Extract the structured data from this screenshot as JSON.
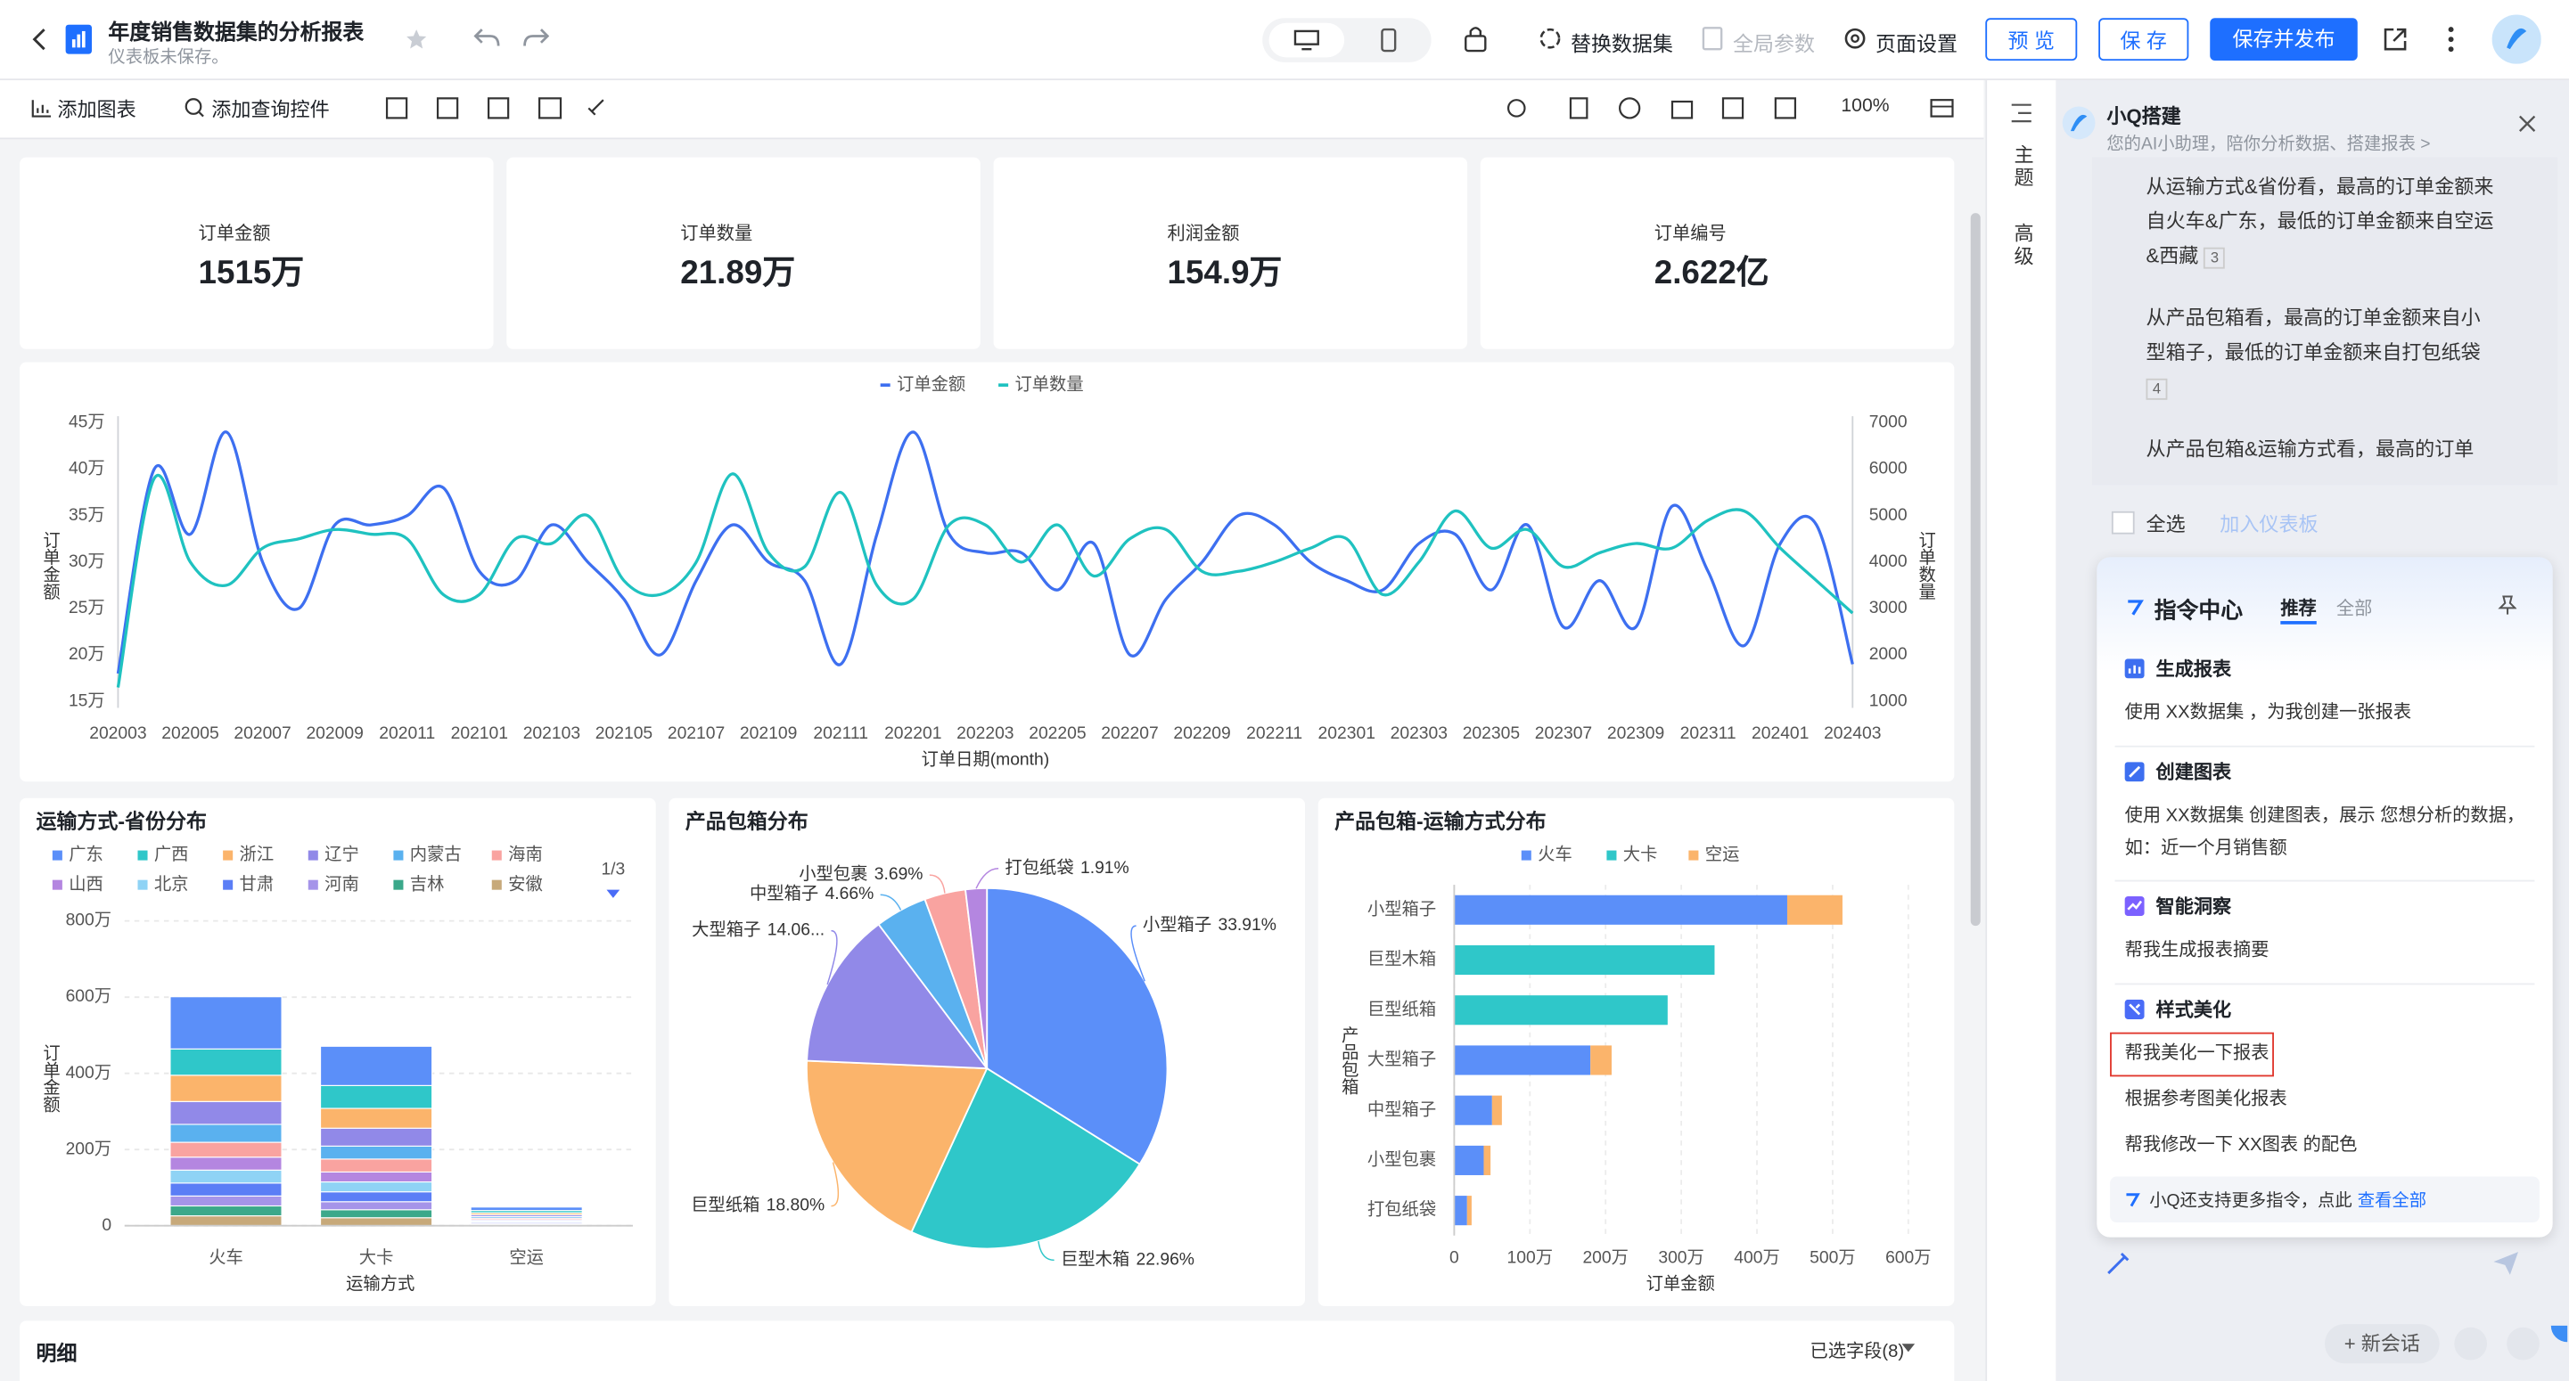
{
  "header": {
    "title": "年度销售数据集的分析报表",
    "subtitle": "仪表板未保存。",
    "actions": [
      "替换数据集",
      "全局参数",
      "页面设置"
    ],
    "buttons": [
      "预 览",
      "保 存",
      "保存并发布"
    ]
  },
  "toolbar": {
    "items": [
      "添加图表",
      "添加查询控件"
    ],
    "zoom": "100%"
  },
  "side_tabs": [
    "主题",
    "高级"
  ],
  "kpis": [
    {
      "label": "订单金额",
      "value": "1515万"
    },
    {
      "label": "订单数量",
      "value": "21.89万"
    },
    {
      "label": "利润金额",
      "value": "154.9万"
    },
    {
      "label": "订单编号",
      "value": "2.622亿"
    }
  ],
  "charts": [
    {
      "type": "line",
      "x_label": "订单日期(month)",
      "y_label": "订单金额",
      "y2_label": "订单数量",
      "categories": [
        "202003",
        null,
        "202005",
        null,
        "202007",
        null,
        "202009",
        null,
        "202011",
        null,
        "202101",
        null,
        "202103",
        null,
        "202105",
        null,
        "202107",
        null,
        "202109",
        null,
        "202111",
        null,
        "202201",
        null,
        "202203",
        null,
        "202205",
        null,
        "202207",
        null,
        "202209",
        null,
        "202211",
        null,
        "202301",
        null,
        "202303",
        null,
        "202305",
        null,
        "202307",
        null,
        "202309",
        null,
        "202311",
        null,
        "202401",
        null,
        "202403"
      ],
      "series": [
        {
          "name": "订单金额",
          "color": "#3d6ff0",
          "values": [
            18,
            40,
            33,
            44,
            30,
            25,
            34,
            34,
            35,
            38,
            29,
            28,
            34,
            30,
            26,
            20,
            28,
            34,
            30,
            28,
            19,
            33,
            44,
            33,
            31,
            31,
            27,
            32,
            20,
            26,
            30,
            35,
            34,
            30,
            28,
            27,
            32,
            33,
            27,
            34,
            23,
            28,
            23,
            36,
            29,
            21,
            32,
            34,
            19
          ]
        },
        {
          "name": "订单数量",
          "color": "#1fc2c0",
          "axis": "y2",
          "values": [
            1300,
            5800,
            4000,
            3500,
            4300,
            4500,
            4700,
            4600,
            4500,
            3300,
            3300,
            4500,
            4400,
            5000,
            3600,
            3300,
            4000,
            5900,
            4200,
            3900,
            5500,
            3500,
            3200,
            4800,
            4800,
            4000,
            4800,
            3700,
            4500,
            4700,
            3800,
            3800,
            4000,
            4300,
            4500,
            3300,
            4000,
            5100,
            4300,
            4700,
            3900,
            4200,
            4400,
            4300,
            4900,
            5100,
            4300,
            3600,
            2900
          ]
        }
      ],
      "ylim": [
        15,
        45
      ],
      "yticks": [
        {
          "value": 15,
          "label": "15万"
        },
        {
          "value": 20,
          "label": "20万"
        },
        {
          "value": 25,
          "label": "25万"
        },
        {
          "value": 30,
          "label": "30万"
        },
        {
          "value": 35,
          "label": "35万"
        },
        {
          "value": 40,
          "label": "40万"
        },
        {
          "value": 45,
          "label": "45万"
        }
      ],
      "y2lim": [
        1000,
        7000
      ],
      "y2ticks": [
        1000,
        2000,
        3000,
        4000,
        5000,
        6000,
        7000
      ],
      "grid": false
    },
    {
      "type": "stacked_bar",
      "title": "运输方式-省份分布",
      "x_label": "运输方式",
      "y_label": "订单金额",
      "legend_page": "1/3",
      "categories": [
        "火车",
        "大卡",
        "空运"
      ],
      "series": [
        {
          "name": "广东",
          "color": "#5b8ff9",
          "values": [
            137,
            103,
            9
          ]
        },
        {
          "name": "广西",
          "color": "#2fc7c9",
          "values": [
            69,
            60,
            6
          ]
        },
        {
          "name": "浙江",
          "color": "#fbb46b",
          "values": [
            69,
            52,
            5
          ]
        },
        {
          "name": "辽宁",
          "color": "#9189e8",
          "values": [
            60,
            47,
            5
          ]
        },
        {
          "name": "内蒙古",
          "color": "#5ab1ef",
          "values": [
            47,
            34,
            4
          ]
        },
        {
          "name": "海南",
          "color": "#f9a3a0",
          "values": [
            39,
            34,
            4
          ]
        },
        {
          "name": "山西",
          "color": "#b486e0",
          "values": [
            34,
            26,
            3
          ]
        },
        {
          "name": "北京",
          "color": "#8fd3f5",
          "values": [
            34,
            26,
            3
          ]
        },
        {
          "name": "甘肃",
          "color": "#5b7ef6",
          "values": [
            34,
            26,
            3
          ]
        },
        {
          "name": "河南",
          "color": "#a594e9",
          "values": [
            26,
            21,
            3
          ]
        },
        {
          "name": "吉林",
          "color": "#3ba88a",
          "values": [
            26,
            21,
            2
          ]
        },
        {
          "name": "安徽",
          "color": "#c7a97a",
          "values": [
            26,
            21,
            2
          ]
        }
      ],
      "ylim": [
        0,
        800
      ],
      "yticks": [
        0,
        {
          "value": 200,
          "label": "200万"
        },
        {
          "value": 400,
          "label": "400万"
        },
        {
          "value": 600,
          "label": "600万"
        },
        {
          "value": 800,
          "label": "800万"
        }
      ],
      "grid": true
    },
    {
      "type": "pie",
      "title": "产品包箱分布",
      "categories": [
        "小型箱子",
        "巨型木箱",
        "巨型纸箱",
        "大型箱子",
        "中型箱子",
        "小型包裹",
        "打包纸袋"
      ],
      "values": [
        33.91,
        22.96,
        18.8,
        14.06,
        4.66,
        3.69,
        1.91
      ],
      "value_labels": [
        "33.91%",
        "22.96%",
        "18.80%",
        "14.06...",
        "4.66%",
        "3.69%",
        "1.91%"
      ],
      "colors": [
        "#5b8ff9",
        "#2fc7c9",
        "#fbb46b",
        "#9189e8",
        "#5ab1ef",
        "#f9a3a0",
        "#b486e0"
      ]
    },
    {
      "type": "hbar",
      "title": "产品包箱-运输方式分布",
      "x_label": "订单金额",
      "y_label": "产品包箱",
      "categories": [
        "小型箱子",
        "巨型木箱",
        "巨型纸箱",
        "大型箱子",
        "中型箱子",
        "小型包裹",
        "打包纸袋"
      ],
      "series": [
        {
          "name": "火车",
          "color": "#5b8ff9",
          "values": [
            440,
            null,
            null,
            180,
            50,
            39,
            17
          ]
        },
        {
          "name": "大卡",
          "color": "#2fc7c9",
          "values": [
            null,
            344,
            282,
            null,
            null,
            null,
            null
          ]
        },
        {
          "name": "空运",
          "color": "#fbb46b",
          "values": [
            73,
            null,
            null,
            28,
            13,
            9,
            6
          ]
        }
      ],
      "xlim": [
        0,
        600
      ],
      "xticks": [
        0,
        {
          "value": 100,
          "label": "100万"
        },
        {
          "value": 200,
          "label": "200万"
        },
        {
          "value": 300,
          "label": "300万"
        },
        {
          "value": 400,
          "label": "400万"
        },
        {
          "value": 500,
          "label": "500万"
        },
        {
          "value": 600,
          "label": "600万"
        }
      ],
      "grid": true
    }
  ],
  "detail": {
    "title": "明细",
    "fields": "已选字段(8)"
  },
  "assistant": {
    "title": "小Q搭建",
    "subtitle": "您的AI小助理，陪你分析数据、搭建报表 >",
    "messages": [
      {
        "text": "从运输方式&省份看，最高的订单金额来自火车&广东，最低的订单金额来自空运&西藏",
        "ref": "3"
      },
      {
        "text": "从产品包箱看，最高的订单金额来自小型箱子，最低的订单金额来自打包纸袋",
        "ref": "4"
      },
      {
        "text": "从产品包箱&运输方式看，最高的订单"
      }
    ],
    "select_all": "全选",
    "add_to_dashboard": "加入仪表板",
    "command_center": {
      "title": "指令中心",
      "tabs": [
        "推荐",
        "全部"
      ],
      "sections": [
        {
          "title": "生成报表",
          "items": [
            "使用 XX数据集 ，为我创建一张报表"
          ]
        },
        {
          "title": "创建图表",
          "items": [
            "使用 XX数据集 创建图表，展示 您想分析的数据，如：近一个月销售额"
          ]
        },
        {
          "title": "智能洞察",
          "items": [
            "帮我生成报表摘要"
          ]
        },
        {
          "title": "样式美化",
          "items": [
            "帮我美化一下报表",
            "根据参考图美化报表",
            "帮我修改一下 XX图表 的配色"
          ]
        }
      ],
      "footer": "小Q还支持更多指令，点此",
      "footer_link": "查看全部"
    },
    "new_chat": "+ 新会话"
  }
}
